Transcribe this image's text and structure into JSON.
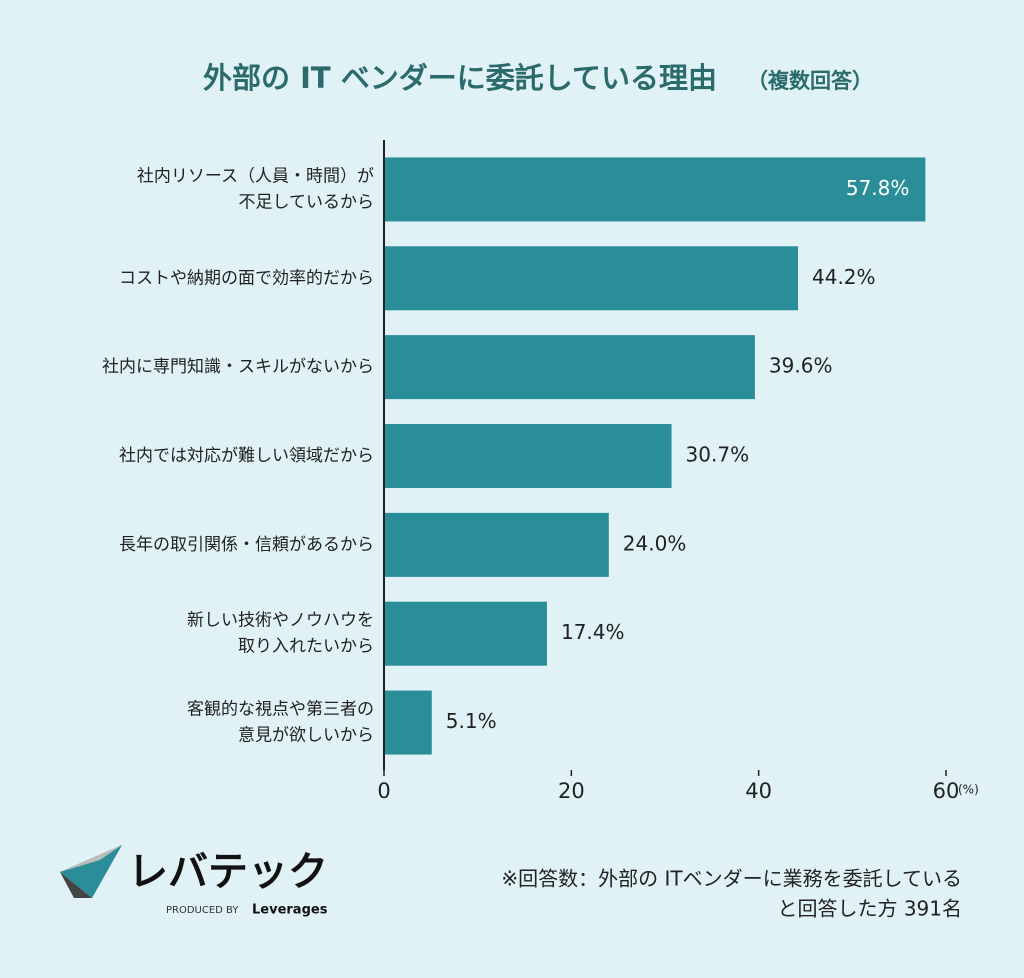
{
  "chart_data": {
    "type": "bar",
    "orientation": "horizontal",
    "title": "外部の IT ベンダーに委託している理由",
    "subtitle": "（複数回答）",
    "categories": [
      [
        "社内リソース（人員・時間）が",
        "不足しているから"
      ],
      [
        "コストや納期の面で効率的だから"
      ],
      [
        "社内に専門知識・スキルがないから"
      ],
      [
        "社内では対応が難しい領域だから"
      ],
      [
        "長年の取引関係・信頼があるから"
      ],
      [
        "新しい技術やノウハウを",
        "取り入れたいから"
      ],
      [
        "客観的な視点や第三者の",
        "意見が欲しいから"
      ]
    ],
    "values": [
      57.8,
      44.2,
      39.6,
      30.7,
      24.0,
      17.4,
      5.1
    ],
    "value_labels": [
      "57.8%",
      "44.2%",
      "39.6%",
      "30.7%",
      "24.0%",
      "17.4%",
      "5.1%"
    ],
    "color": "#2a8e99",
    "xlim": [
      0,
      60
    ],
    "xticks": [
      0,
      20,
      40,
      60
    ],
    "x_unit": "(%)",
    "note": [
      "※回答数：外部の ITベンダーに業務を委託している",
      "と回答した方 391名"
    ],
    "logo": {
      "name": "レバテック",
      "produced_by": "PRODUCED BY",
      "company": "Leverages"
    }
  }
}
